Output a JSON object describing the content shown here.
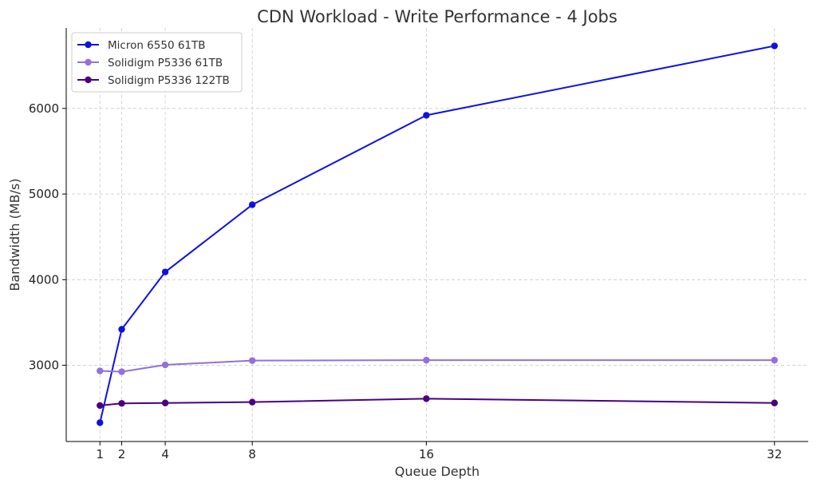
{
  "chart_data": {
    "type": "line",
    "title": "CDN Workload - Write Performance - 4 Jobs",
    "xlabel": "Queue Depth",
    "ylabel": "Bandwidth (MB/s)",
    "x": [
      1,
      2,
      4,
      8,
      16,
      32
    ],
    "x_ticks": [
      1,
      2,
      4,
      8,
      16,
      32
    ],
    "y_ticks": [
      3000,
      4000,
      5000,
      6000
    ],
    "xlim": [
      -0.55,
      33.55
    ],
    "ylim": [
      2110,
      6940
    ],
    "grid": true,
    "legend_position": "top-left",
    "series": [
      {
        "name": "Micron 6550 61TB",
        "color": "#1010e0",
        "values": [
          2330,
          3420,
          4090,
          4875,
          5920,
          6730
        ]
      },
      {
        "name": "Solidigm P5336 61TB",
        "color": "#9370db",
        "values": [
          2935,
          2925,
          3005,
          3055,
          3060,
          3060
        ]
      },
      {
        "name": "Solidigm P5336 122TB",
        "color": "#4b0082",
        "values": [
          2530,
          2555,
          2560,
          2570,
          2610,
          2560
        ]
      }
    ]
  }
}
